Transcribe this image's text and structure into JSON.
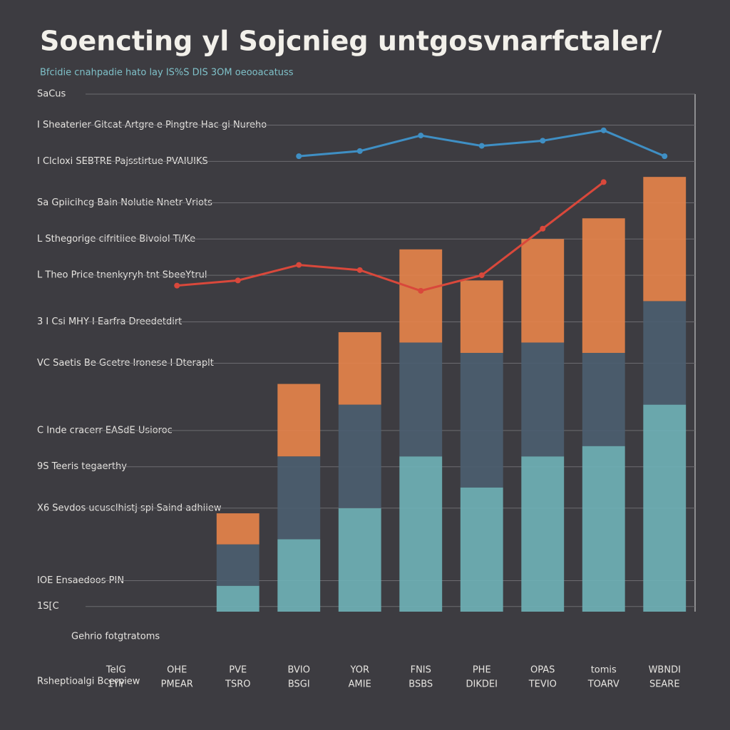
{
  "chart_data": {
    "type": "bar",
    "title": "Soencting yl Sojcnieg untgosvnarfctaler/",
    "subtitle": "Bfcidie cnahpadie hato lay  IS%S  DIS 3OM oeooacatuss",
    "x_label": "Rsheptioalgi Bcerpiew",
    "annotation": "Gehrio fotgtratoms",
    "categories": [
      "1YY",
      "PMEAR",
      "TSRO",
      "BSGI",
      "AMIE",
      "BSBS",
      "DIKDEI",
      "TEVIO",
      "TOARV",
      "SEARE"
    ],
    "top_labels": [
      "TeIG",
      "OHE",
      "PVE",
      "BVIO",
      "YOR",
      "FNIS",
      "PHE",
      "OPAS",
      "tomis",
      "WBNDI"
    ],
    "ylim": [
      0,
      100
    ],
    "yticks": [
      {
        "value": 100,
        "label": "SaCus"
      },
      {
        "value": 94,
        "label": "I Sheaterier Gitcat Artgre e Pingtre Hac gi Nureho"
      },
      {
        "value": 87,
        "label": "I Clcloxi SEBTRE Pajsstirtue PVAIUIKS"
      },
      {
        "value": 79,
        "label": "Sa Gpiicihcg Bain Nolutie Nnetr Vriots"
      },
      {
        "value": 72,
        "label": "L Sthegorige cifritiiee Bivoiol Ti/Ke"
      },
      {
        "value": 65,
        "label": "L Theo Price tnenkyryh tnt SbeeYtrul"
      },
      {
        "value": 56,
        "label": "3 I Csi MHY I Earfra Dreedetdirt"
      },
      {
        "value": 48,
        "label": "VC Saetis Be Gcetre Ironese I Dteraplt"
      },
      {
        "value": 35,
        "label": "C Inde cracerr EASdE Usioroc"
      },
      {
        "value": 28,
        "label": "9S Teeris tegaerthy"
      },
      {
        "value": 20,
        "label": "X6 Sevdos ucusclhistj spi Saind adhiiew"
      },
      {
        "value": 6,
        "label": "IOE Ensaedoos PIN"
      },
      {
        "value": 1,
        "label": "1S[C"
      }
    ],
    "grid": true,
    "series": [
      {
        "color": "#6fb3b8",
        "values": [
          0,
          0,
          5,
          14,
          20,
          30,
          24,
          30,
          32,
          40
        ]
      },
      {
        "color": "#4b5e70",
        "values": [
          0,
          0,
          8,
          16,
          20,
          22,
          26,
          22,
          18,
          20
        ]
      },
      {
        "color": "#e8844a",
        "values": [
          0,
          0,
          6,
          14,
          14,
          18,
          14,
          20,
          26,
          24
        ]
      },
      {
        "kind": "line",
        "color": "#d9483b",
        "values": [
          null,
          63,
          64,
          67,
          66,
          62,
          65,
          74,
          83,
          null
        ]
      },
      {
        "kind": "line",
        "color": "#3f8fc4",
        "values": [
          null,
          null,
          null,
          88,
          89,
          92,
          90,
          91,
          93,
          88
        ]
      }
    ]
  }
}
